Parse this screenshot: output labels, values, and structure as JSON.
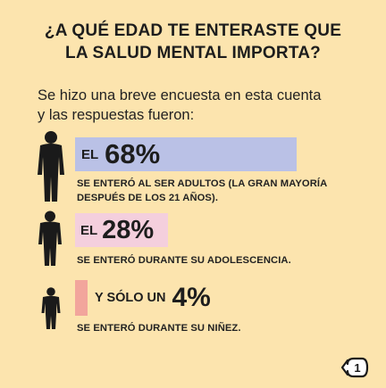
{
  "title": {
    "line1": "¿A QUÉ EDAD TE ENTERASTE QUE",
    "line2": "LA SALUD MENTAL IMPORTA?"
  },
  "intro": {
    "line1": "Se hizo una breve encuesta en esta cuenta",
    "line2": "y las respuestas fueron:"
  },
  "stats": [
    {
      "prefix": "EL",
      "percent_label": "68%",
      "value": 68,
      "desc_line1": "SE ENTERÓ AL SER ADULTOS (LA GRAN MAYORÍA",
      "desc_line2": "DESPUÉS DE LOS 21 AÑOS).",
      "color": "#BAC1E6"
    },
    {
      "prefix": "EL",
      "percent_label": "28%",
      "value": 28,
      "desc_line1": "SE ENTERÓ DURANTE SU ADOLESCENCIA.",
      "color": "#F4CFDD"
    },
    {
      "prefix": "Y SÓLO UN",
      "percent_label": "4%",
      "value": 4,
      "desc_line1": "SE ENTERÓ DURANTE SU NIÑEZ.",
      "color": "#F2A59C"
    }
  ],
  "page_number": "1",
  "colors": {
    "background": "#FCE4AE",
    "text": "#1d1d1d"
  },
  "icons": [
    "adult-silhouette-icon",
    "teen-silhouette-icon",
    "child-silhouette-icon",
    "page-number-badge-icon"
  ]
}
